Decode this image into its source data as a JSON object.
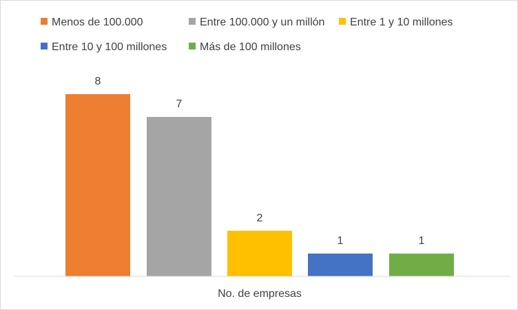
{
  "chart_data": {
    "type": "bar",
    "title": "",
    "xlabel": "",
    "ylabel": "",
    "categories": [
      "No. de empresas"
    ],
    "series": [
      {
        "name": "Menos de 100.000",
        "values": [
          8
        ],
        "color": "#ED7D31"
      },
      {
        "name": "Entre 100.000 y un millón",
        "values": [
          7
        ],
        "color": "#A5A5A5"
      },
      {
        "name": "Entre 1 y 10 millones",
        "values": [
          2
        ],
        "color": "#FFC000"
      },
      {
        "name": "Entre 10 y 100 millones",
        "values": [
          1
        ],
        "color": "#4472C4"
      },
      {
        "name": "Más de  100 millones",
        "values": [
          1
        ],
        "color": "#70AD47"
      }
    ],
    "ylim": [
      0,
      8
    ],
    "grid": false,
    "legend_position": "top",
    "data_labels": true,
    "axis_color": "#d9d9d9",
    "text_color": "#404040"
  }
}
